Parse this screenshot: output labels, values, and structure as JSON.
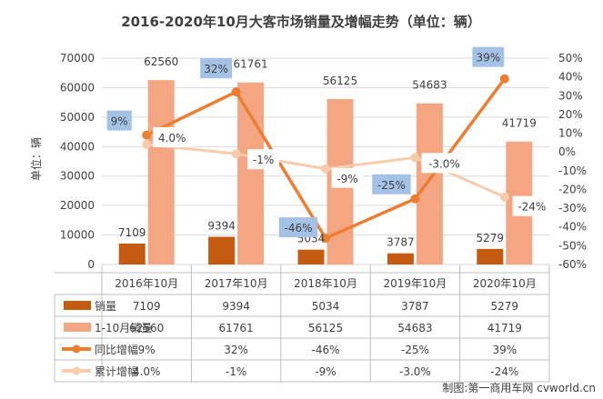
{
  "chart_data": {
    "type": "bar",
    "title": "2016-2020年10月大客市场销量及增幅走势（单位：辆）",
    "ylabel": "单位：辆",
    "categories": [
      "2016年10月",
      "2017年10月",
      "2018年10月",
      "2019年10月",
      "2020年10月"
    ],
    "y_left_lim": [
      0,
      70000
    ],
    "y_left_ticks": [
      "0",
      "10000",
      "20000",
      "30000",
      "40000",
      "50000",
      "60000",
      "70000"
    ],
    "y_right_lim": [
      -60,
      50
    ],
    "y_right_ticks": [
      "-60%",
      "-50%",
      "-40%",
      "-30%",
      "-20%",
      "-10%",
      "0%",
      "10%",
      "20%",
      "30%",
      "40%",
      "50%"
    ],
    "grid": true,
    "series": [
      {
        "name": "销量",
        "kind": "bar",
        "axis": "left",
        "color": "#c55a11",
        "values": [
          7109,
          9394,
          5034,
          3787,
          5279
        ],
        "labels": [
          "7109",
          "9394",
          "5034",
          "3787",
          "5279"
        ]
      },
      {
        "name": "1-10月销量",
        "kind": "bar",
        "axis": "left",
        "color": "#f4a582",
        "values": [
          62560,
          61761,
          56125,
          54683,
          41719
        ],
        "labels": [
          "62560",
          "61761",
          "56125",
          "54683",
          "41719"
        ]
      },
      {
        "name": "同比增幅",
        "kind": "line",
        "axis": "right",
        "color": "#ed7d31",
        "values": [
          9,
          32,
          -46,
          -25,
          39
        ],
        "labels": [
          "9%",
          "32%",
          "-46%",
          "-25%",
          "39%"
        ]
      },
      {
        "name": "累计增幅",
        "kind": "line",
        "axis": "right",
        "color": "#f8cbad",
        "values": [
          4.0,
          -1,
          -9,
          -3.0,
          -24
        ],
        "labels": [
          "4.0%",
          "-1%",
          "-9%",
          "-3.0%",
          "-24%"
        ]
      }
    ]
  },
  "watermark": "制图:第一商用车网 cvworld.cn"
}
